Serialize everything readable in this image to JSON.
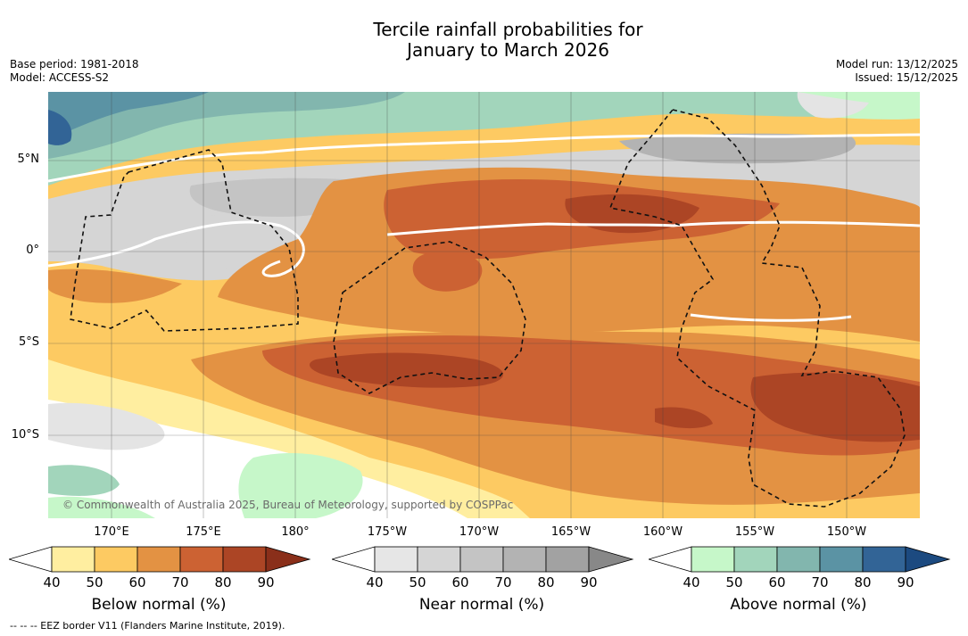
{
  "title": {
    "line1": "Tercile rainfall probabilities for",
    "line2": "January to March 2026"
  },
  "meta_left": {
    "base_period": "Base period: 1981-2018",
    "model": "Model: ACCESS-S2"
  },
  "meta_right": {
    "model_run": "Model run: 13/12/2025",
    "issued": "Issued: 15/12/2025"
  },
  "latitude_labels": [
    "5°N",
    "0°",
    "5°S",
    "10°S"
  ],
  "longitude_labels": [
    "170°E",
    "175°E",
    "180°",
    "175°W",
    "170°W",
    "165°W",
    "160°W",
    "155°W",
    "150°W"
  ],
  "copyright": "© Commonwealth of Australia 2025, Bureau of Meteorology, supported by COSPPac",
  "legends": [
    {
      "title": "Below normal (%)",
      "ticks": [
        "40",
        "50",
        "60",
        "70",
        "80",
        "90"
      ],
      "colors": [
        "#ffffff",
        "#ffeea0",
        "#fdca62",
        "#e39243",
        "#cc6233",
        "#ac4525",
        "#8a2f1a"
      ]
    },
    {
      "title": "Near normal (%)",
      "ticks": [
        "40",
        "50",
        "60",
        "70",
        "80",
        "90"
      ],
      "colors": [
        "#ffffff",
        "#e6e6e6",
        "#d5d5d5",
        "#c4c4c4",
        "#b3b3b3",
        "#a2a2a2",
        "#888888"
      ]
    },
    {
      "title": "Above normal (%)",
      "ticks": [
        "40",
        "50",
        "60",
        "70",
        "80",
        "90"
      ],
      "colors": [
        "#ffffff",
        "#c6f7c9",
        "#a2d5bb",
        "#82b6ae",
        "#5b93a4",
        "#326496",
        "#1c4a80"
      ]
    }
  ],
  "footnote": "--  --  -- EEZ border V11 (Flanders Marine Institute, 2019)."
}
